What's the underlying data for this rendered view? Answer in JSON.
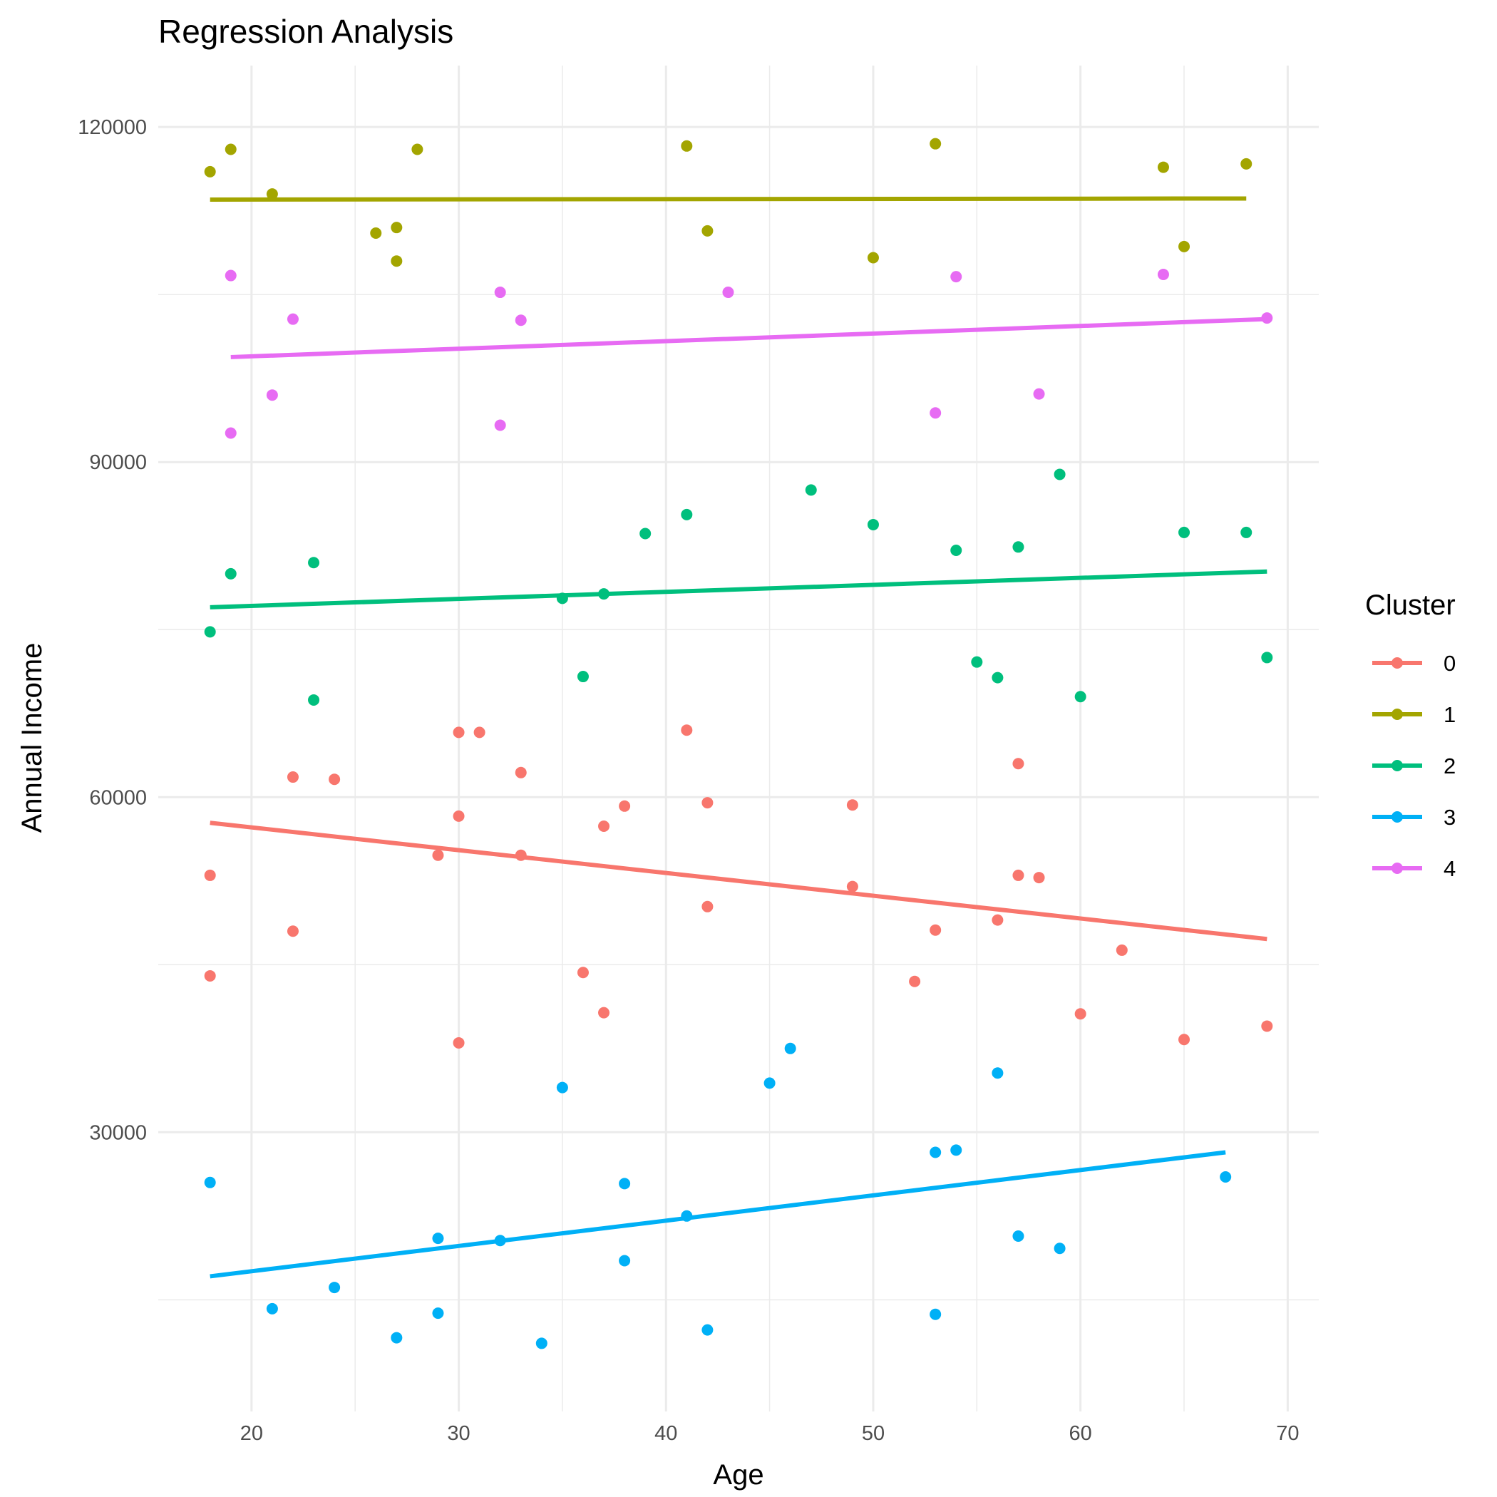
{
  "chart_data": {
    "type": "scatter",
    "title": "Regression Analysis",
    "xlabel": "Age",
    "ylabel": "Annual Income",
    "xlim": [
      15.5,
      71.5
    ],
    "ylim": [
      5000,
      125500
    ],
    "x_ticks": [
      20,
      30,
      40,
      50,
      60,
      70
    ],
    "y_ticks": [
      30000,
      60000,
      90000,
      120000
    ],
    "x_tick_labels": [
      "20",
      "30",
      "40",
      "50",
      "60",
      "70"
    ],
    "y_tick_labels": [
      "30000",
      "60000",
      "90000",
      "120000"
    ],
    "grid": true,
    "legend_title": "Cluster",
    "legend_position": "right",
    "series": [
      {
        "name": "0",
        "color": "#F8766D",
        "points": [
          [
            18,
            53000
          ],
          [
            18,
            44000
          ],
          [
            22,
            61800
          ],
          [
            22,
            48000
          ],
          [
            24,
            61600
          ],
          [
            29,
            54800
          ],
          [
            30,
            65800
          ],
          [
            30,
            58300
          ],
          [
            30,
            38000
          ],
          [
            31,
            65800
          ],
          [
            33,
            62200
          ],
          [
            33,
            54800
          ],
          [
            36,
            44300
          ],
          [
            37,
            57400
          ],
          [
            37,
            40700
          ],
          [
            38,
            59200
          ],
          [
            41,
            66000
          ],
          [
            42,
            59500
          ],
          [
            42,
            50200
          ],
          [
            49,
            59300
          ],
          [
            49,
            52000
          ],
          [
            53,
            48100
          ],
          [
            52,
            43500
          ],
          [
            56,
            49000
          ],
          [
            57,
            63000
          ],
          [
            57,
            53000
          ],
          [
            58,
            52800
          ],
          [
            60,
            40600
          ],
          [
            62,
            46300
          ],
          [
            65,
            38300
          ],
          [
            69,
            39500
          ]
        ],
        "fit": [
          [
            18,
            57700
          ],
          [
            69,
            47300
          ]
        ]
      },
      {
        "name": "1",
        "color": "#A3A500",
        "points": [
          [
            18,
            116000
          ],
          [
            19,
            118000
          ],
          [
            21,
            114000
          ],
          [
            26,
            110500
          ],
          [
            27,
            111000
          ],
          [
            27,
            108000
          ],
          [
            28,
            118000
          ],
          [
            41,
            118300
          ],
          [
            42,
            110700
          ],
          [
            50,
            108300
          ],
          [
            53,
            118500
          ],
          [
            64,
            116400
          ],
          [
            65,
            109300
          ],
          [
            68,
            116700
          ]
        ],
        "fit": [
          [
            18,
            113500
          ],
          [
            68,
            113600
          ]
        ]
      },
      {
        "name": "2",
        "color": "#00BF7D",
        "points": [
          [
            18,
            74800
          ],
          [
            19,
            80000
          ],
          [
            23,
            81000
          ],
          [
            23,
            68700
          ],
          [
            35,
            77800
          ],
          [
            36,
            70800
          ],
          [
            37,
            78200
          ],
          [
            39,
            83600
          ],
          [
            41,
            85300
          ],
          [
            47,
            87500
          ],
          [
            50,
            84400
          ],
          [
            54,
            82100
          ],
          [
            55,
            72100
          ],
          [
            56,
            70700
          ],
          [
            57,
            82400
          ],
          [
            59,
            88900
          ],
          [
            60,
            69000
          ],
          [
            65,
            83700
          ],
          [
            68,
            83700
          ],
          [
            69,
            72500
          ]
        ],
        "fit": [
          [
            18,
            77000
          ],
          [
            69,
            80200
          ]
        ]
      },
      {
        "name": "3",
        "color": "#00B0F6",
        "points": [
          [
            18,
            25500
          ],
          [
            21,
            14200
          ],
          [
            24,
            16100
          ],
          [
            27,
            11600
          ],
          [
            29,
            20500
          ],
          [
            29,
            13800
          ],
          [
            32,
            20300
          ],
          [
            34,
            11100
          ],
          [
            35,
            34000
          ],
          [
            38,
            25400
          ],
          [
            38,
            18500
          ],
          [
            41,
            22500
          ],
          [
            42,
            12300
          ],
          [
            45,
            34400
          ],
          [
            46,
            37500
          ],
          [
            53,
            28200
          ],
          [
            53,
            13700
          ],
          [
            54,
            28400
          ],
          [
            56,
            35300
          ],
          [
            57,
            20700
          ],
          [
            59,
            19600
          ],
          [
            67,
            26000
          ]
        ],
        "fit": [
          [
            18,
            17100
          ],
          [
            67,
            28200
          ]
        ]
      },
      {
        "name": "4",
        "color": "#E76BF3",
        "points": [
          [
            19,
            106700
          ],
          [
            19,
            92600
          ],
          [
            21,
            96000
          ],
          [
            22,
            102800
          ],
          [
            32,
            105200
          ],
          [
            32,
            93300
          ],
          [
            33,
            102700
          ],
          [
            43,
            105200
          ],
          [
            53,
            94400
          ],
          [
            54,
            106600
          ],
          [
            58,
            96100
          ],
          [
            64,
            106800
          ],
          [
            69,
            102900
          ]
        ],
        "fit": [
          [
            19,
            99400
          ],
          [
            69,
            102800
          ]
        ]
      }
    ]
  }
}
